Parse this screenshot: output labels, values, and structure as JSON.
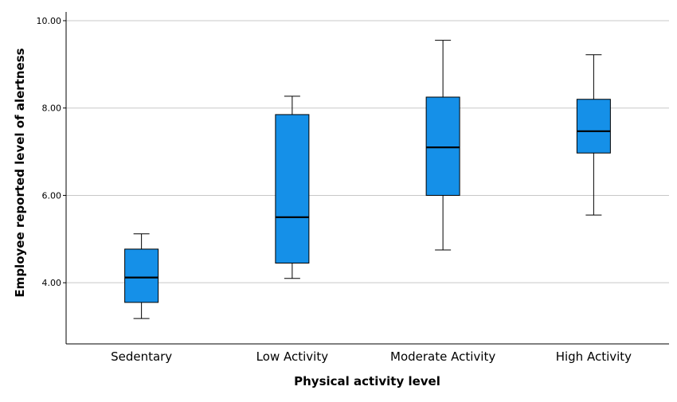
{
  "chart_data": {
    "type": "box",
    "xlabel": "Physical activity level",
    "ylabel": "Employee reported level of alertness",
    "ylim": [
      2.6,
      10.2
    ],
    "yticks": [
      4.0,
      6.0,
      8.0,
      10.0
    ],
    "ytick_labels": [
      "4.00",
      "6.00",
      "8.00",
      "10.00"
    ],
    "grid": "horizontal",
    "box_color": "#1590e8",
    "categories": [
      "Sedentary",
      "Low Activity",
      "Moderate Activity",
      "High Activity"
    ],
    "boxes": [
      {
        "category": "Sedentary",
        "min": 3.18,
        "q1": 3.55,
        "median": 4.12,
        "q3": 4.77,
        "max": 5.12
      },
      {
        "category": "Low Activity",
        "min": 4.1,
        "q1": 4.45,
        "median": 5.5,
        "q3": 7.85,
        "max": 8.27
      },
      {
        "category": "Moderate Activity",
        "min": 4.75,
        "q1": 6.0,
        "median": 7.1,
        "q3": 8.25,
        "max": 9.55
      },
      {
        "category": "High Activity",
        "min": 5.55,
        "q1": 6.97,
        "median": 7.47,
        "q3": 8.2,
        "max": 9.22
      }
    ]
  }
}
